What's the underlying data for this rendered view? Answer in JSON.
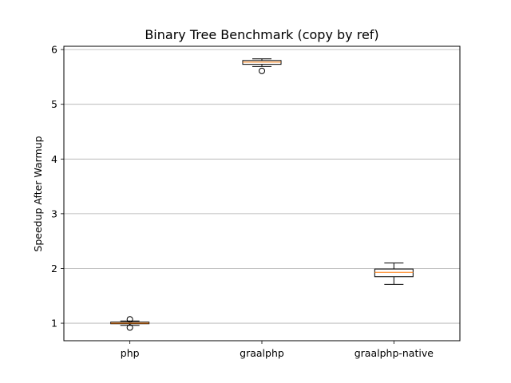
{
  "chart_data": {
    "type": "boxplot",
    "title": "Binary Tree Benchmark (copy by ref)",
    "xlabel": "",
    "ylabel": "Speedup After Warmup",
    "categories": [
      "php",
      "graalphp",
      "graalphp-native"
    ],
    "ylim": [
      0.68,
      6.06
    ],
    "yticks": [
      1,
      2,
      3,
      4,
      5,
      6
    ],
    "grid": "y",
    "boxes": [
      {
        "name": "php",
        "whisker_low": 0.96,
        "q1": 0.99,
        "median": 1.0,
        "q3": 1.02,
        "whisker_high": 1.04,
        "outliers": [
          1.07,
          0.92
        ]
      },
      {
        "name": "graalphp",
        "whisker_low": 5.69,
        "q1": 5.73,
        "median": 5.77,
        "q3": 5.8,
        "whisker_high": 5.83,
        "outliers": [
          5.61
        ]
      },
      {
        "name": "graalphp-native",
        "whisker_low": 1.71,
        "q1": 1.85,
        "median": 1.93,
        "q3": 1.99,
        "whisker_high": 2.1,
        "outliers": []
      }
    ],
    "colors": {
      "box": "#000000",
      "median": "#ff7f0e",
      "grid": "#b0b0b0"
    }
  }
}
